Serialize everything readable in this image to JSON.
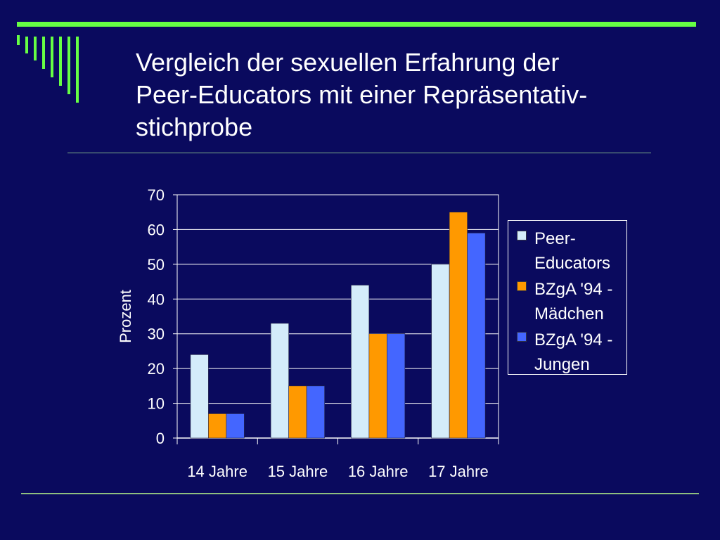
{
  "slide": {
    "title_lines": [
      "Vergleich der sexuellen Erfahrung der",
      "Peer-Educators mit einer Repräsentativ-",
      "stichprobe"
    ]
  },
  "colors": {
    "background": "#0a0a5e",
    "accent_green": "#66ff44"
  },
  "chart_data": {
    "type": "bar",
    "categories": [
      "14 Jahre",
      "15 Jahre",
      "16 Jahre",
      "17 Jahre"
    ],
    "series": [
      {
        "name": "Peer-Educators",
        "values": [
          24,
          33,
          44,
          50
        ],
        "color": "#d4ecfa"
      },
      {
        "name": "BZgA '94 - Mädchen",
        "values": [
          7,
          15,
          30,
          65
        ],
        "color": "#ff9900"
      },
      {
        "name": "BZgA '94 - Jungen",
        "values": [
          7,
          15,
          30,
          59
        ],
        "color": "#4466ff"
      }
    ],
    "title": "",
    "xlabel": "",
    "ylabel": "Prozent",
    "ylim": [
      0,
      70
    ],
    "yticks": [
      "0",
      "10",
      "20",
      "30",
      "40",
      "50",
      "60",
      "70"
    ],
    "grid": true,
    "legend_position": "right"
  }
}
